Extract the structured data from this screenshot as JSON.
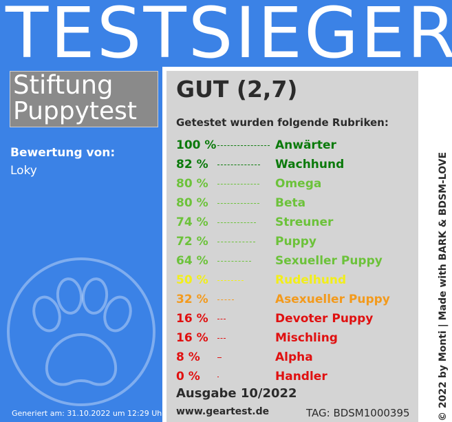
{
  "banner": {
    "title": "TESTSIEGER"
  },
  "brand": {
    "line1": "Stiftung",
    "line2": "Puppytest"
  },
  "rating": {
    "label": "Bewertung von:",
    "name": "Loky"
  },
  "footer_left": {
    "generated": "Generiert am: 31.10.2022 um 12:29 Uhr"
  },
  "paw_icon": "paw-print-icon",
  "result": {
    "grade": "GUT (2,7)",
    "subtitle": "Getestet wurden folgende Rubriken:",
    "rows": [
      {
        "percent": "100 %",
        "value": 100,
        "name": "Anwärter",
        "color": "#0b7a0b"
      },
      {
        "percent": "82 %",
        "value": 82,
        "name": "Wachhund",
        "color": "#0b7a0b"
      },
      {
        "percent": "80 %",
        "value": 80,
        "name": "Omega",
        "color": "#6cc23a"
      },
      {
        "percent": "80 %",
        "value": 80,
        "name": "Beta",
        "color": "#6cc23a"
      },
      {
        "percent": "74 %",
        "value": 74,
        "name": "Streuner",
        "color": "#6cc23a"
      },
      {
        "percent": "72 %",
        "value": 72,
        "name": "Puppy",
        "color": "#6cc23a"
      },
      {
        "percent": "64 %",
        "value": 64,
        "name": "Sexueller Puppy",
        "color": "#6cc23a"
      },
      {
        "percent": "50 %",
        "value": 50,
        "name": "Rudelhund",
        "color": "#f2ee1a"
      },
      {
        "percent": "32 %",
        "value": 32,
        "name": "Asexueller Puppy",
        "color": "#f39a1c"
      },
      {
        "percent": "16 %",
        "value": 16,
        "name": "Devoter Puppy",
        "color": "#e01010"
      },
      {
        "percent": "16 %",
        "value": 16,
        "name": "Mischling",
        "color": "#e01010"
      },
      {
        "percent": "8 %",
        "value": 8,
        "name": "Alpha",
        "color": "#e01010"
      },
      {
        "percent": "0 %",
        "value": 0,
        "name": "Handler",
        "color": "#e01010"
      }
    ],
    "issue": "Ausgabe 10/2022",
    "url": "www.geartest.de",
    "tag": "TAG: BDSM1000395"
  },
  "credit": "© 2022 by Monti | Made with BARK & BDSM-LOVE",
  "colors": {
    "blue": "#3b82e6",
    "panel": "#d4d4d4",
    "brand_box": "#8a8a8a"
  }
}
